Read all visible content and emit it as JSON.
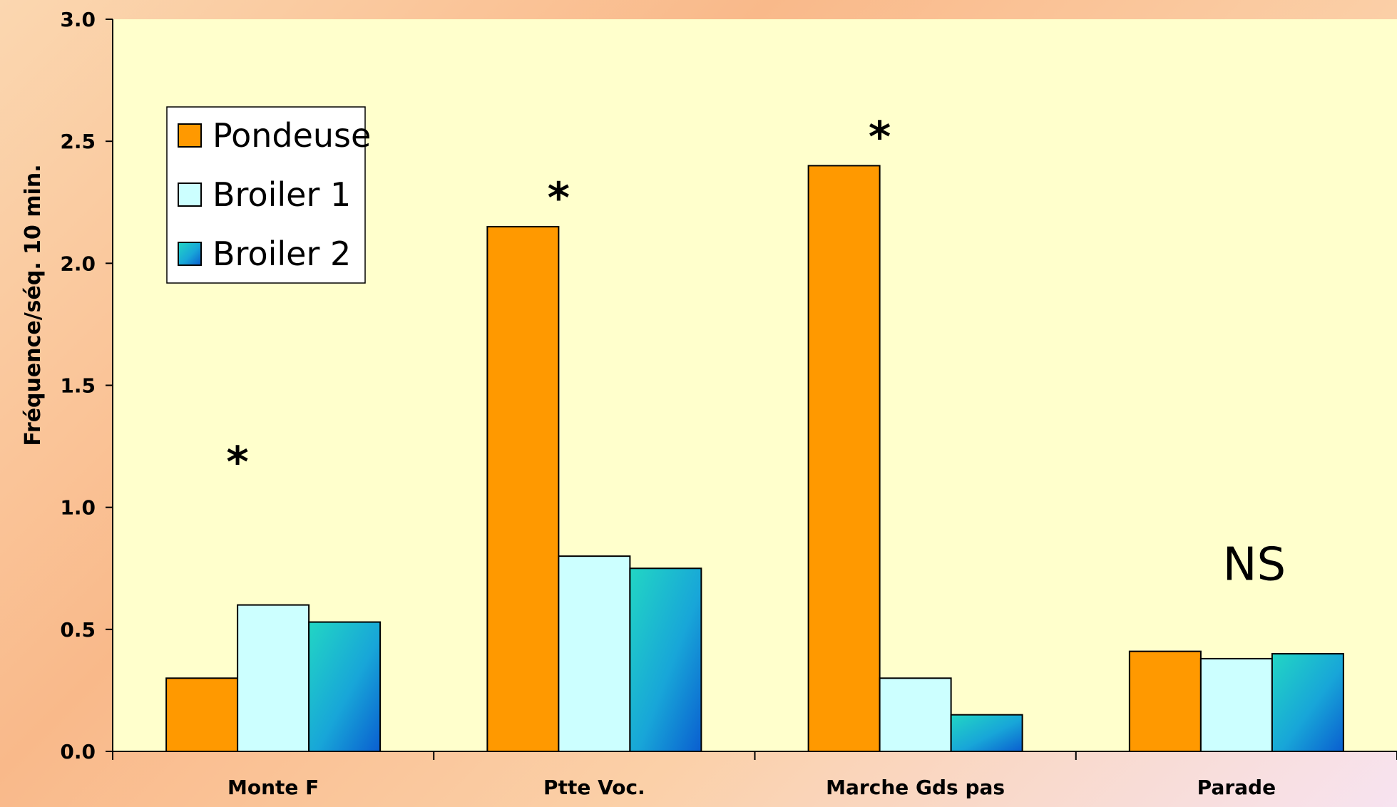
{
  "chart_data": {
    "type": "bar",
    "title": "",
    "xlabel": "",
    "ylabel": "Fréquence/séq. 10 min.",
    "ylim": [
      0,
      3.0
    ],
    "yticks": [
      "0.0",
      "0.5",
      "1.0",
      "1.5",
      "2.0",
      "2.5",
      "3.0"
    ],
    "categories": [
      "Monte F",
      "Ptte Voc.",
      "Marche Gds pas",
      "Parade"
    ],
    "series": [
      {
        "name": "Pondeuse",
        "values": [
          0.3,
          2.15,
          2.4,
          0.41
        ],
        "color": "#ff9900"
      },
      {
        "name": "Broiler 1",
        "values": [
          0.6,
          0.8,
          0.3,
          0.38
        ],
        "color": "#ccffff"
      },
      {
        "name": "Broiler 2",
        "values": [
          0.53,
          0.75,
          0.15,
          0.4
        ],
        "color": "#1a9fd6"
      }
    ],
    "annotations": [
      {
        "category": "Monte F",
        "text": "*"
      },
      {
        "category": "Ptte Voc.",
        "text": "*"
      },
      {
        "category": "Marche Gds pas",
        "text": "*"
      },
      {
        "category": "Parade",
        "text": "NS"
      }
    ],
    "legend_position": "top-left",
    "plot_background": "#ffffcc",
    "grid": false
  }
}
